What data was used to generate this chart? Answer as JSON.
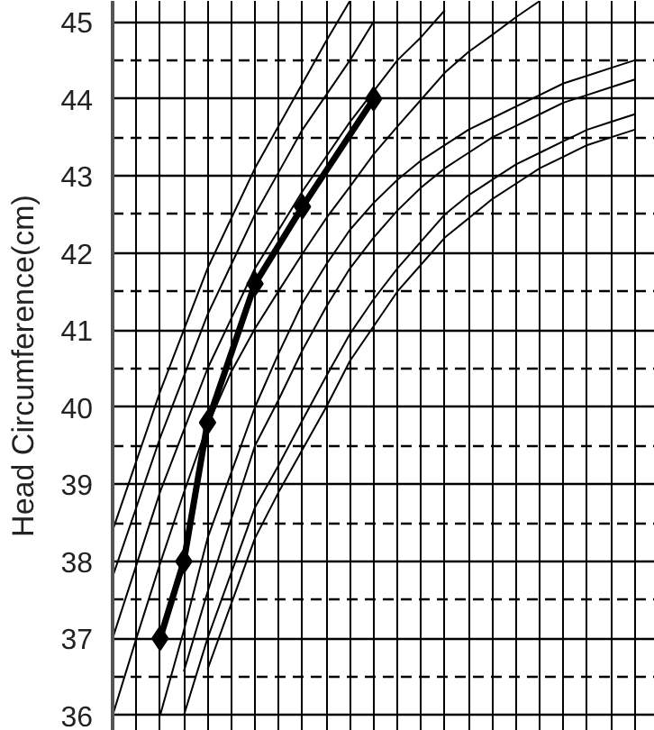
{
  "chart_data": {
    "type": "line",
    "ylabel": "Head Circumference(cm)",
    "categories": [
      null,
      null,
      null,
      null,
      null,
      null,
      null,
      null,
      null,
      null,
      null,
      null,
      null,
      null,
      null,
      null,
      null,
      null,
      null,
      null,
      null,
      null,
      null
    ],
    "ylim": [
      35.8,
      45.27
    ],
    "yticks": [
      36,
      {
        "value": 36.5,
        "label": null
      },
      37,
      {
        "value": 37.5,
        "label": null
      },
      38,
      {
        "value": 38.5,
        "label": null
      },
      39,
      {
        "value": 39.5,
        "label": null
      },
      40,
      {
        "value": 40.5,
        "label": null
      },
      41,
      {
        "value": 41.5,
        "label": null
      },
      42,
      {
        "value": 42.5,
        "label": null
      },
      43,
      {
        "value": 43.5,
        "label": null
      },
      44,
      {
        "value": 44.5,
        "label": null
      },
      45
    ],
    "tick_labels": "y",
    "grid": true,
    "line_style": "solid",
    "series": [
      {
        "color": "#000000",
        "marker": "none",
        "values": [
          37.0,
          37.95,
          38.9,
          39.7,
          40.5,
          41.15,
          41.8,
          42.3,
          42.8,
          43.25,
          43.7,
          44.1,
          44.5,
          44.8,
          45.15,
          null,
          null,
          null,
          null,
          null,
          null,
          null,
          null
        ]
      },
      {
        "color": "#000000",
        "marker": "none",
        "values": [
          37.8,
          38.7,
          39.6,
          40.4,
          41.2,
          41.85,
          42.5,
          43.05,
          43.6,
          44.05,
          44.5,
          45.0,
          null,
          null,
          null,
          null,
          null,
          null,
          null,
          null,
          null,
          null,
          null
        ]
      },
      {
        "color": "#000000",
        "marker": "none",
        "values": [
          38.4,
          39.3,
          40.2,
          41.0,
          41.8,
          42.45,
          43.1,
          43.65,
          44.2,
          44.75,
          45.27,
          null,
          null,
          null,
          null,
          null,
          null,
          null,
          null,
          null,
          null,
          null,
          null
        ]
      },
      {
        "color": "#000000",
        "marker": "none",
        "values": [
          36.0,
          37.0,
          37.97,
          38.89,
          39.76,
          40.46,
          41.02,
          41.51,
          41.99,
          42.45,
          42.86,
          43.28,
          43.64,
          43.99,
          44.34,
          44.61,
          44.83,
          45.06,
          45.27,
          null,
          null,
          null,
          null
        ]
      },
      {
        "color": "#000000",
        "marker": "none",
        "values": [
          null,
          null,
          36.0,
          37.1,
          38.3,
          39.15,
          40.0,
          40.7,
          41.35,
          41.85,
          42.3,
          42.65,
          42.95,
          43.2,
          43.4,
          43.6,
          43.75,
          43.9,
          44.05,
          44.2,
          44.3,
          44.4,
          44.5
        ]
      },
      {
        "color": "#000000",
        "marker": "none",
        "values": [
          null,
          null,
          null,
          36.57,
          37.6,
          38.55,
          39.5,
          40.1,
          40.74,
          41.3,
          41.8,
          42.2,
          42.55,
          42.85,
          43.1,
          43.3,
          43.5,
          43.65,
          43.8,
          43.95,
          44.05,
          44.15,
          44.25
        ]
      },
      {
        "color": "#000000",
        "marker": "none",
        "values": [
          null,
          null,
          null,
          36.0,
          37.0,
          37.85,
          38.7,
          39.25,
          39.83,
          40.4,
          40.95,
          41.4,
          41.8,
          42.15,
          42.5,
          42.75,
          42.95,
          43.15,
          43.3,
          43.45,
          43.6,
          43.7,
          43.8
        ]
      },
      {
        "color": "#000000",
        "marker": "none",
        "values": [
          null,
          null,
          null,
          null,
          36.6,
          37.45,
          38.3,
          38.9,
          39.45,
          40.0,
          40.6,
          41.05,
          41.5,
          41.85,
          42.2,
          42.45,
          42.7,
          42.9,
          43.1,
          43.25,
          43.4,
          43.5,
          43.6
        ]
      },
      {
        "color": "#000000",
        "marker": "diamond",
        "values": [
          null,
          null,
          37.0,
          38.0,
          39.8,
          null,
          41.6,
          null,
          42.6,
          null,
          null,
          44.0,
          null,
          null,
          null,
          null,
          null,
          null,
          null,
          null,
          null,
          null,
          null
        ]
      }
    ]
  }
}
